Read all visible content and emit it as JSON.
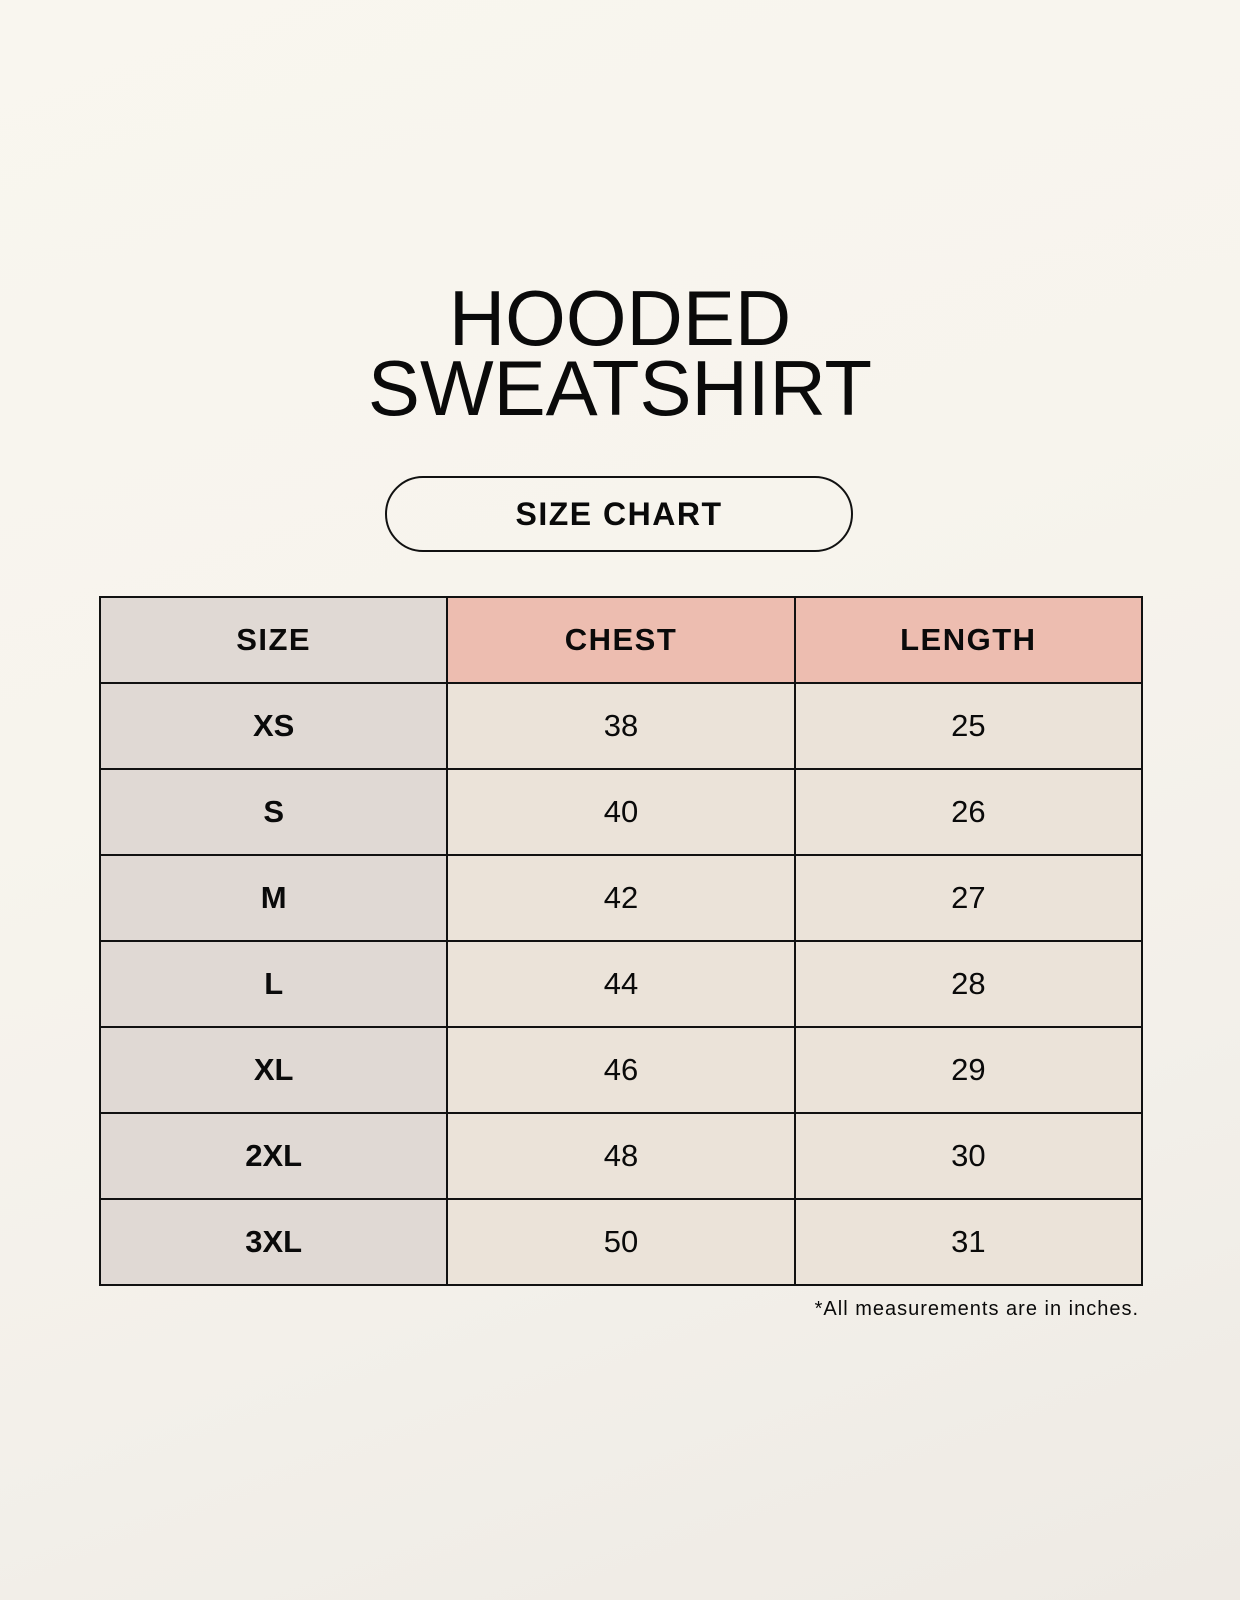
{
  "title": {
    "line1": "HOODED",
    "line2": "SWEATSHIRT"
  },
  "badge": "SIZE CHART",
  "table": {
    "headers": [
      "SIZE",
      "CHEST",
      "LENGTH"
    ],
    "rows": [
      [
        "XS",
        "38",
        "25"
      ],
      [
        "S",
        "40",
        "26"
      ],
      [
        "M",
        "42",
        "27"
      ],
      [
        "L",
        "44",
        "28"
      ],
      [
        "XL",
        "46",
        "29"
      ],
      [
        "2XL",
        "48",
        "30"
      ],
      [
        "3XL",
        "50",
        "31"
      ]
    ]
  },
  "colors": {
    "size_column": "#e0d9d4",
    "header_accent": "#edbdb0",
    "cell": "#ebe3d9"
  },
  "footnote": "*All measurements are in inches."
}
